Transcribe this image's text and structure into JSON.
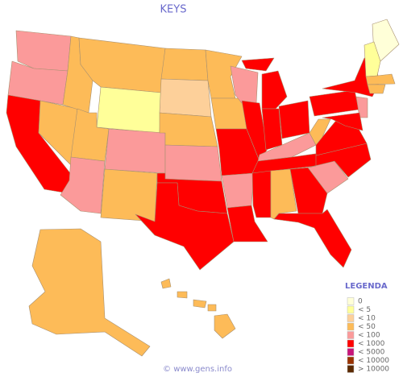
{
  "title": "KEYS",
  "legend": {
    "title": "LEGENDA",
    "items": [
      {
        "label": "0",
        "color": "#ffffd8"
      },
      {
        "label": "< 5",
        "color": "#ffff99"
      },
      {
        "label": "< 10",
        "color": "#fdd09a"
      },
      {
        "label": "< 50",
        "color": "#fdbb58"
      },
      {
        "label": "< 100",
        "color": "#fb9a9a"
      },
      {
        "label": "< 1000",
        "color": "#ff0000"
      },
      {
        "label": "< 5000",
        "color": "#c8157a"
      },
      {
        "label": "< 10000",
        "color": "#993300"
      },
      {
        "label": "> 10000",
        "color": "#5c2a00"
      }
    ]
  },
  "states": [
    4,
    4,
    5,
    3,
    3,
    3,
    1,
    3,
    4,
    4,
    3,
    3,
    2,
    3,
    4,
    5,
    5,
    3,
    3,
    5,
    4,
    5,
    4,
    5,
    5,
    5,
    5,
    4,
    5,
    5,
    3,
    5,
    5,
    4,
    5,
    5,
    3,
    5,
    5,
    0,
    1,
    3,
    3,
    4,
    5,
    3,
    3
  ],
  "footer": "© www.gens.info"
}
